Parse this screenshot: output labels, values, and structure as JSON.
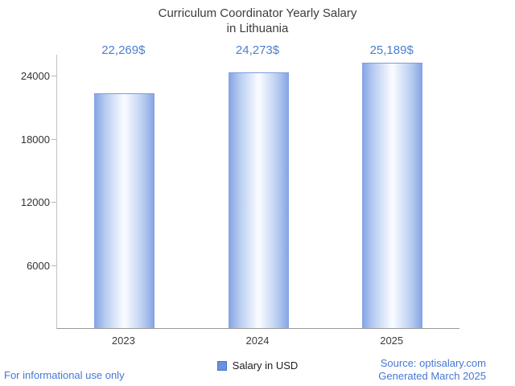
{
  "title_lines": [
    "Curriculum Coordinator Yearly Salary",
    "in Lithuania"
  ],
  "chart_data": {
    "type": "bar",
    "title": "Curriculum Coordinator Yearly Salary in Lithuania",
    "categories": [
      "2023",
      "2024",
      "2025"
    ],
    "values": [
      22269,
      24273,
      25189
    ],
    "value_labels": [
      "22,269$",
      "24,273$",
      "25,189$"
    ],
    "series_name": "Salary in USD",
    "xlabel": "",
    "ylabel": "",
    "ylim": [
      0,
      26000
    ],
    "yticks": [
      6000,
      12000,
      18000,
      24000
    ],
    "grid": false,
    "legend": "Salary in USD",
    "legend_position": "bottom",
    "bar_edge_color": "#84a3e4",
    "bar_center_color": "#f7faff",
    "value_label_color": "#4a7fd0"
  },
  "footer": {
    "left": "For informational use only",
    "source": "Source: optisalary.com",
    "generated": "Generated March 2025"
  },
  "colors": {
    "title": "#3c3c3c",
    "footer_blue": "#4577d4",
    "axis": "#c2c2c2",
    "baseline": "#9a9a9a"
  }
}
